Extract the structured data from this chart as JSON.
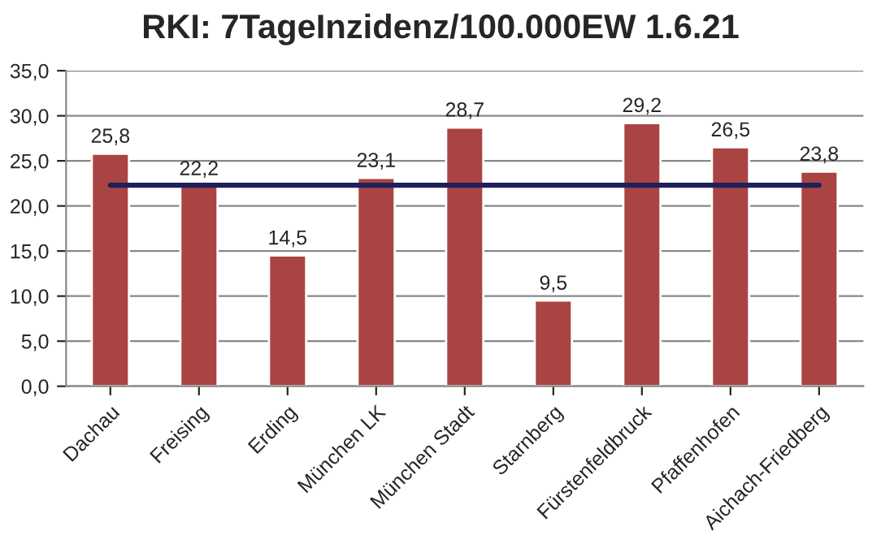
{
  "chart_data": {
    "type": "bar",
    "title": "RKI: 7TageInzidenz/100.000EW 1.6.21",
    "categories": [
      "Dachau",
      "Freising",
      "Erding",
      "München LK",
      "München Stadt",
      "Starnberg",
      "Fürstenfeldbruck",
      "Pfaffenhofen",
      "Aichach-Friedberg"
    ],
    "series": [
      {
        "color": "#a94442",
        "values": [
          25.8,
          22.2,
          14.5,
          23.1,
          28.7,
          9.5,
          29.2,
          26.5,
          23.8
        ],
        "value_labels": [
          "25,8",
          "22,2",
          "14,5",
          "23,1",
          "28,7",
          "9,5",
          "29,2",
          "26,5",
          "23,8"
        ]
      },
      {
        "type": "line",
        "color": "#1f1f5c",
        "values": [
          22.3,
          22.3,
          22.3,
          22.3,
          22.3,
          22.3,
          22.3,
          22.3,
          22.3
        ]
      }
    ],
    "ylim": [
      0,
      35
    ],
    "yticks": [
      {
        "value": 0,
        "label": "0,0"
      },
      {
        "value": 5,
        "label": "5,0"
      },
      {
        "value": 10,
        "label": "10,0"
      },
      {
        "value": 15,
        "label": "15,0"
      },
      {
        "value": 20,
        "label": "20,0"
      },
      {
        "value": 25,
        "label": "25,0"
      },
      {
        "value": 30,
        "label": "30,0"
      },
      {
        "value": 35,
        "label": "35,0"
      }
    ],
    "grid": "y",
    "legend": false
  }
}
